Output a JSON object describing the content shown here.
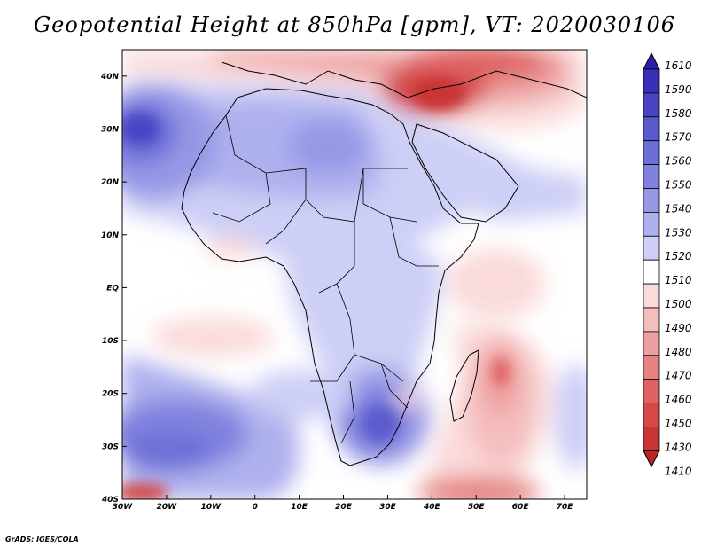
{
  "title": "Geopotential Height at 850hPa [gpm], VT: 2020030106",
  "credit": "GrADS: IGES/COLA",
  "map": {
    "lon_range": [
      -30,
      75
    ],
    "lat_range": [
      -40,
      45
    ],
    "x_ticks": [
      "30W",
      "20W",
      "10W",
      "0",
      "10E",
      "20E",
      "30E",
      "40E",
      "50E",
      "60E",
      "70E"
    ],
    "y_ticks": [
      "40N",
      "30N",
      "20N",
      "10N",
      "EQ",
      "10S",
      "20S",
      "30S",
      "40S"
    ]
  },
  "colorbar": {
    "labels": [
      "1610",
      "1590",
      "1580",
      "1570",
      "1560",
      "1550",
      "1540",
      "1530",
      "1520",
      "1510",
      "1500",
      "1490",
      "1480",
      "1470",
      "1460",
      "1450",
      "1430",
      "1410"
    ],
    "colors": [
      "#2b20a8",
      "#3a2fb8",
      "#4a44c4",
      "#5a5acc",
      "#6c6ed6",
      "#8082de",
      "#9698e6",
      "#afb0ee",
      "#cdcff6",
      "#ffffff",
      "#fadada",
      "#f4bebe",
      "#eea0a0",
      "#e68282",
      "#de6262",
      "#d44848",
      "#c83434",
      "#b82424"
    ]
  }
}
